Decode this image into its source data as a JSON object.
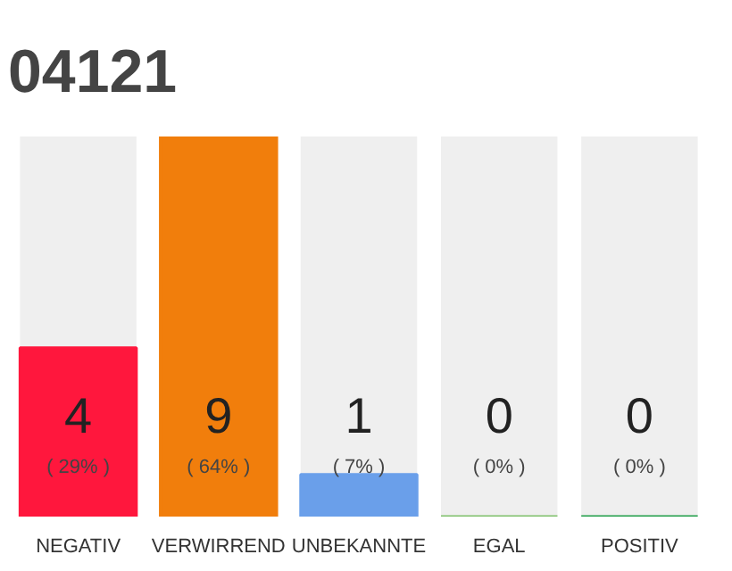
{
  "chart_data": {
    "type": "bar",
    "title": "04121",
    "categories": [
      "NEGATIV",
      "VERWIRREND",
      "UNBEKANNTE",
      "EGAL",
      "POSITIV"
    ],
    "series": [
      {
        "colors": [
          "#ff173d",
          "#f17e0c",
          "#6a9fea",
          "#7ec06a",
          "#1f9e48"
        ],
        "values": [
          4,
          9,
          1,
          0,
          0
        ]
      }
    ],
    "data_labels": true,
    "annotations": [
      "( 29% )",
      "( 64% )",
      "( 7% )",
      "( 0% )",
      "( 0% )"
    ],
    "tick_labels": "x",
    "grid": false
  }
}
